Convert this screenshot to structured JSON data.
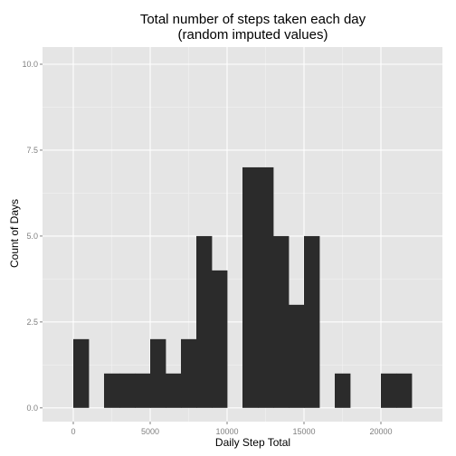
{
  "chart_data": {
    "type": "bar",
    "title": "Total number of steps taken each day",
    "subtitle": "(random imputed values)",
    "xlabel": "Daily Step Total",
    "ylabel": "Count of Days",
    "bin_width": 1000,
    "bins": [
      {
        "x0": 0,
        "x1": 1000,
        "count": 2
      },
      {
        "x0": 1000,
        "x1": 2000,
        "count": 0
      },
      {
        "x0": 2000,
        "x1": 3000,
        "count": 1
      },
      {
        "x0": 3000,
        "x1": 4000,
        "count": 1
      },
      {
        "x0": 4000,
        "x1": 5000,
        "count": 1
      },
      {
        "x0": 5000,
        "x1": 6000,
        "count": 2
      },
      {
        "x0": 6000,
        "x1": 7000,
        "count": 1
      },
      {
        "x0": 7000,
        "x1": 8000,
        "count": 2
      },
      {
        "x0": 8000,
        "x1": 9000,
        "count": 5
      },
      {
        "x0": 9000,
        "x1": 10000,
        "count": 4
      },
      {
        "x0": 10000,
        "x1": 11000,
        "count": 0
      },
      {
        "x0": 11000,
        "x1": 12000,
        "count": 7
      },
      {
        "x0": 12000,
        "x1": 13000,
        "count": 7
      },
      {
        "x0": 13000,
        "x1": 14000,
        "count": 5
      },
      {
        "x0": 14000,
        "x1": 15000,
        "count": 3
      },
      {
        "x0": 15000,
        "x1": 16000,
        "count": 5
      },
      {
        "x0": 16000,
        "x1": 17000,
        "count": 0
      },
      {
        "x0": 17000,
        "x1": 18000,
        "count": 1
      },
      {
        "x0": 18000,
        "x1": 19000,
        "count": 0
      },
      {
        "x0": 19000,
        "x1": 20000,
        "count": 0
      },
      {
        "x0": 20000,
        "x1": 21000,
        "count": 1
      },
      {
        "x0": 21000,
        "x1": 22000,
        "count": 1
      }
    ],
    "xlim": [
      -2000,
      24000
    ],
    "ylim": [
      -0.4,
      10.5
    ],
    "xticks": [
      0,
      5000,
      10000,
      15000,
      20000
    ],
    "xtick_labels": [
      "0",
      "5000",
      "10000",
      "15000",
      "20000"
    ],
    "yticks": [
      0,
      2.5,
      5,
      7.5,
      10
    ],
    "ytick_labels": [
      "0.0",
      "2.5",
      "5.0",
      "7.5",
      "10.0"
    ],
    "grid": true,
    "colors": {
      "panel": "#e5e5e5",
      "grid_major": "#ffffff",
      "grid_minor": "#f2f2f2",
      "bar": "#2b2b2b",
      "tick_text": "#7f7f7f"
    }
  }
}
